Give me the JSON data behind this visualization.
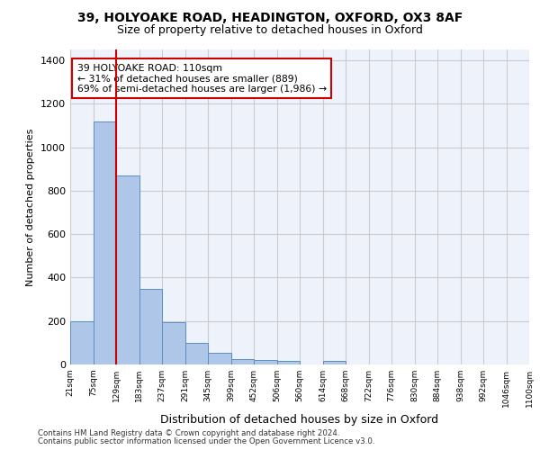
{
  "title_line1": "39, HOLYOAKE ROAD, HEADINGTON, OXFORD, OX3 8AF",
  "title_line2": "Size of property relative to detached houses in Oxford",
  "xlabel": "Distribution of detached houses by size in Oxford",
  "ylabel": "Number of detached properties",
  "footer_line1": "Contains HM Land Registry data © Crown copyright and database right 2024.",
  "footer_line2": "Contains public sector information licensed under the Open Government Licence v3.0.",
  "bin_labels": [
    "21sqm",
    "75sqm",
    "129sqm",
    "183sqm",
    "237sqm",
    "291sqm",
    "345sqm",
    "399sqm",
    "452sqm",
    "506sqm",
    "560sqm",
    "614sqm",
    "668sqm",
    "722sqm",
    "776sqm",
    "830sqm",
    "884sqm",
    "938sqm",
    "992sqm",
    "1046sqm",
    "1100sqm"
  ],
  "bar_values": [
    197,
    1120,
    870,
    350,
    193,
    100,
    52,
    25,
    22,
    17,
    0,
    15,
    0,
    0,
    0,
    0,
    0,
    0,
    0,
    0
  ],
  "bar_color": "#aec6e8",
  "bar_edge_color": "#5a8fc2",
  "ylim": [
    0,
    1450
  ],
  "yticks": [
    0,
    200,
    400,
    600,
    800,
    1000,
    1200,
    1400
  ],
  "vline_color": "#cc0000",
  "annotation_box_color": "#ffffff",
  "annotation_box_edge_color": "#cc0000",
  "grid_color": "#cccccc",
  "background_color": "#eef2fb"
}
